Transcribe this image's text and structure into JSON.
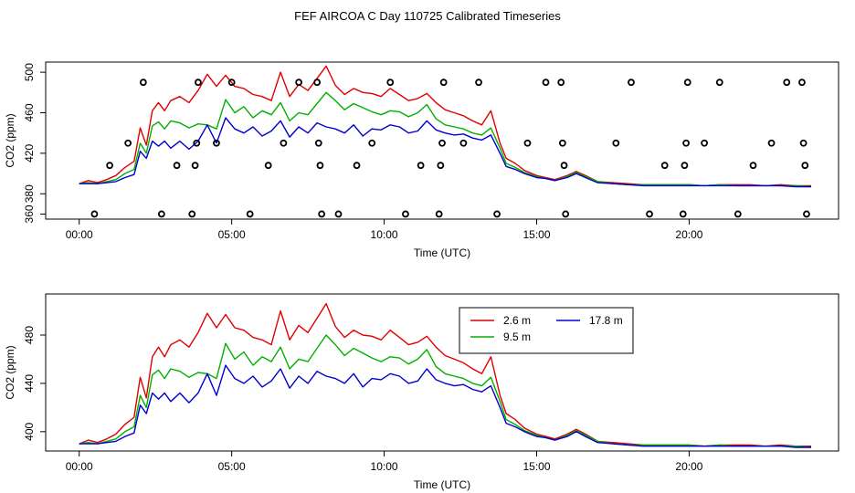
{
  "figure_title": "FEF AIRCOA C  Day 110725  Calibrated Timeseries",
  "colors": {
    "h2_6": "#e00000",
    "h9_5": "#00b000",
    "h17_8": "#0000d0",
    "marker": "#000000"
  },
  "chart_data": [
    {
      "type": "line",
      "panel": "top",
      "xlabel": "Time (UTC)",
      "ylabel": "CO2 (ppm)",
      "xlim": [
        -1.1,
        24.9
      ],
      "ylim": [
        355,
        510
      ],
      "xticks": [
        0,
        5,
        10,
        15,
        20
      ],
      "xtick_labels": [
        "00:00",
        "05:00",
        "10:00",
        "15:00",
        "20:00"
      ],
      "yticks": [
        360,
        380,
        420,
        460,
        500
      ],
      "ytick_labels": [
        "360",
        "380",
        "420",
        "460",
        "500"
      ],
      "x": [
        0.0,
        0.3,
        0.6,
        0.9,
        1.2,
        1.5,
        1.8,
        2.0,
        2.2,
        2.4,
        2.6,
        2.8,
        3.0,
        3.3,
        3.6,
        3.9,
        4.2,
        4.5,
        4.8,
        5.1,
        5.4,
        5.7,
        6.0,
        6.3,
        6.6,
        6.9,
        7.2,
        7.5,
        7.8,
        8.1,
        8.4,
        8.7,
        9.0,
        9.3,
        9.6,
        9.9,
        10.2,
        10.5,
        10.8,
        11.1,
        11.4,
        11.7,
        12.0,
        12.3,
        12.6,
        12.9,
        13.2,
        13.5,
        13.8,
        14.0,
        14.3,
        14.6,
        15.0,
        15.3,
        15.6,
        16.0,
        16.3,
        16.6,
        17.0,
        17.5,
        18.0,
        18.5,
        19.0,
        19.5,
        20.0,
        20.5,
        21.0,
        21.5,
        22.0,
        22.5,
        23.0,
        23.5,
        24.0
      ],
      "series": [
        {
          "name": "2.6 m",
          "color_key": "h2_6",
          "values": [
            390,
            393,
            391,
            394,
            398,
            406,
            412,
            445,
            428,
            462,
            470,
            462,
            472,
            476,
            470,
            482,
            498,
            486,
            497,
            486,
            484,
            478,
            476,
            472,
            500,
            476,
            488,
            482,
            494,
            506,
            487,
            478,
            484,
            480,
            479,
            476,
            484,
            478,
            472,
            474,
            479,
            470,
            463,
            460,
            457,
            452,
            448,
            462,
            430,
            415,
            410,
            403,
            398,
            396,
            394,
            398,
            402,
            398,
            392,
            391,
            390,
            389,
            389,
            389,
            389,
            388,
            389,
            389,
            389,
            388,
            389,
            388,
            388
          ]
        },
        {
          "name": "9.5 m",
          "color_key": "h9_5",
          "values": [
            390,
            391,
            390,
            392,
            394,
            400,
            404,
            430,
            420,
            447,
            451,
            444,
            452,
            450,
            445,
            449,
            448,
            444,
            473,
            460,
            466,
            455,
            462,
            458,
            470,
            452,
            460,
            458,
            469,
            480,
            472,
            463,
            469,
            465,
            461,
            458,
            462,
            461,
            456,
            460,
            468,
            454,
            448,
            446,
            444,
            440,
            438,
            445,
            425,
            410,
            406,
            401,
            397,
            395,
            393,
            397,
            401,
            397,
            392,
            390,
            389,
            389,
            389,
            389,
            389,
            388,
            389,
            388,
            388,
            388,
            388,
            388,
            387
          ]
        },
        {
          "name": "17.8 m",
          "color_key": "h17_8",
          "values": [
            390,
            390,
            390,
            391,
            392,
            396,
            399,
            422,
            415,
            432,
            427,
            432,
            425,
            432,
            424,
            432,
            448,
            430,
            455,
            444,
            440,
            446,
            437,
            442,
            452,
            436,
            446,
            440,
            450,
            446,
            444,
            440,
            448,
            437,
            444,
            443,
            448,
            446,
            440,
            442,
            452,
            443,
            440,
            438,
            439,
            435,
            433,
            438,
            420,
            407,
            404,
            400,
            396,
            395,
            393,
            396,
            400,
            396,
            391,
            390,
            389,
            388,
            388,
            388,
            388,
            388,
            388,
            388,
            388,
            388,
            388,
            387,
            387
          ]
        }
      ],
      "markers": [
        {
          "x": 0.5,
          "y": 360
        },
        {
          "x": 1.0,
          "y": 408
        },
        {
          "x": 1.6,
          "y": 430
        },
        {
          "x": 2.1,
          "y": 490
        },
        {
          "x": 2.7,
          "y": 360
        },
        {
          "x": 3.2,
          "y": 408
        },
        {
          "x": 3.7,
          "y": 360
        },
        {
          "x": 3.8,
          "y": 408
        },
        {
          "x": 3.85,
          "y": 430
        },
        {
          "x": 3.9,
          "y": 490
        },
        {
          "x": 4.5,
          "y": 430
        },
        {
          "x": 5.0,
          "y": 490
        },
        {
          "x": 5.6,
          "y": 360
        },
        {
          "x": 6.2,
          "y": 408
        },
        {
          "x": 6.7,
          "y": 430
        },
        {
          "x": 7.2,
          "y": 490
        },
        {
          "x": 7.8,
          "y": 490
        },
        {
          "x": 7.85,
          "y": 430
        },
        {
          "x": 7.9,
          "y": 408
        },
        {
          "x": 7.95,
          "y": 360
        },
        {
          "x": 8.5,
          "y": 360
        },
        {
          "x": 9.1,
          "y": 408
        },
        {
          "x": 9.6,
          "y": 430
        },
        {
          "x": 10.2,
          "y": 490
        },
        {
          "x": 10.7,
          "y": 360
        },
        {
          "x": 11.2,
          "y": 408
        },
        {
          "x": 11.8,
          "y": 360
        },
        {
          "x": 11.85,
          "y": 408
        },
        {
          "x": 11.9,
          "y": 430
        },
        {
          "x": 11.95,
          "y": 490
        },
        {
          "x": 12.6,
          "y": 430
        },
        {
          "x": 13.1,
          "y": 490
        },
        {
          "x": 13.7,
          "y": 360
        },
        {
          "x": 14.7,
          "y": 430
        },
        {
          "x": 15.3,
          "y": 490
        },
        {
          "x": 15.8,
          "y": 490
        },
        {
          "x": 15.85,
          "y": 430
        },
        {
          "x": 15.9,
          "y": 408
        },
        {
          "x": 15.95,
          "y": 360
        },
        {
          "x": 17.6,
          "y": 430
        },
        {
          "x": 18.1,
          "y": 490
        },
        {
          "x": 18.7,
          "y": 360
        },
        {
          "x": 19.2,
          "y": 408
        },
        {
          "x": 19.8,
          "y": 360
        },
        {
          "x": 19.85,
          "y": 408
        },
        {
          "x": 19.9,
          "y": 430
        },
        {
          "x": 19.95,
          "y": 490
        },
        {
          "x": 20.5,
          "y": 430
        },
        {
          "x": 21.0,
          "y": 490
        },
        {
          "x": 21.6,
          "y": 360
        },
        {
          "x": 22.1,
          "y": 408
        },
        {
          "x": 22.7,
          "y": 430
        },
        {
          "x": 23.2,
          "y": 490
        },
        {
          "x": 23.7,
          "y": 490
        },
        {
          "x": 23.75,
          "y": 430
        },
        {
          "x": 23.8,
          "y": 408
        },
        {
          "x": 23.85,
          "y": 360
        }
      ]
    },
    {
      "type": "line",
      "panel": "bottom",
      "xlabel": "Time (UTC)",
      "ylabel": "CO2 (ppm)",
      "xlim": [
        -1.1,
        24.9
      ],
      "ylim": [
        384,
        514
      ],
      "xticks": [
        0,
        5,
        10,
        15,
        20
      ],
      "xtick_labels": [
        "00:00",
        "05:00",
        "10:00",
        "15:00",
        "20:00"
      ],
      "yticks": [
        400,
        440,
        480
      ],
      "ytick_labels": [
        "400",
        "440",
        "480"
      ],
      "legend_position": "top-right-inside",
      "legend": [
        "2.6 m",
        "9.5 m",
        "17.8 m"
      ],
      "x": [
        0.0,
        0.3,
        0.6,
        0.9,
        1.2,
        1.5,
        1.8,
        2.0,
        2.2,
        2.4,
        2.6,
        2.8,
        3.0,
        3.3,
        3.6,
        3.9,
        4.2,
        4.5,
        4.8,
        5.1,
        5.4,
        5.7,
        6.0,
        6.3,
        6.6,
        6.9,
        7.2,
        7.5,
        7.8,
        8.1,
        8.4,
        8.7,
        9.0,
        9.3,
        9.6,
        9.9,
        10.2,
        10.5,
        10.8,
        11.1,
        11.4,
        11.7,
        12.0,
        12.3,
        12.6,
        12.9,
        13.2,
        13.5,
        13.8,
        14.0,
        14.3,
        14.6,
        15.0,
        15.3,
        15.6,
        16.0,
        16.3,
        16.6,
        17.0,
        17.5,
        18.0,
        18.5,
        19.0,
        19.5,
        20.0,
        20.5,
        21.0,
        21.5,
        22.0,
        22.5,
        23.0,
        23.5,
        24.0
      ],
      "series": [
        {
          "name": "2.6 m",
          "color_key": "h2_6",
          "values": [
            390,
            393,
            391,
            394,
            398,
            406,
            412,
            445,
            428,
            462,
            470,
            462,
            472,
            476,
            470,
            482,
            498,
            486,
            497,
            486,
            484,
            478,
            476,
            472,
            500,
            476,
            488,
            482,
            494,
            506,
            487,
            478,
            484,
            480,
            479,
            476,
            484,
            478,
            472,
            474,
            479,
            470,
            463,
            460,
            457,
            452,
            448,
            462,
            430,
            415,
            410,
            403,
            398,
            396,
            394,
            398,
            402,
            398,
            392,
            391,
            390,
            389,
            389,
            389,
            389,
            388,
            389,
            389,
            389,
            388,
            389,
            388,
            388
          ]
        },
        {
          "name": "9.5 m",
          "color_key": "h9_5",
          "values": [
            390,
            391,
            390,
            392,
            394,
            400,
            404,
            430,
            420,
            447,
            451,
            444,
            452,
            450,
            445,
            449,
            448,
            444,
            473,
            460,
            466,
            455,
            462,
            458,
            470,
            452,
            460,
            458,
            469,
            480,
            472,
            463,
            469,
            465,
            461,
            458,
            462,
            461,
            456,
            460,
            468,
            454,
            448,
            446,
            444,
            440,
            438,
            445,
            425,
            410,
            406,
            401,
            397,
            395,
            393,
            397,
            401,
            397,
            392,
            390,
            389,
            389,
            389,
            389,
            389,
            388,
            389,
            388,
            388,
            388,
            388,
            388,
            387
          ]
        },
        {
          "name": "17.8 m",
          "color_key": "h17_8",
          "values": [
            390,
            390,
            390,
            391,
            392,
            396,
            399,
            422,
            415,
            432,
            427,
            432,
            425,
            432,
            424,
            432,
            448,
            430,
            455,
            444,
            440,
            446,
            437,
            442,
            452,
            436,
            446,
            440,
            450,
            446,
            444,
            440,
            448,
            437,
            444,
            443,
            448,
            446,
            440,
            442,
            452,
            443,
            440,
            438,
            439,
            435,
            433,
            438,
            420,
            407,
            404,
            400,
            396,
            395,
            393,
            396,
            400,
            396,
            391,
            390,
            389,
            388,
            388,
            388,
            388,
            388,
            388,
            388,
            388,
            388,
            388,
            387,
            387
          ]
        }
      ]
    }
  ]
}
